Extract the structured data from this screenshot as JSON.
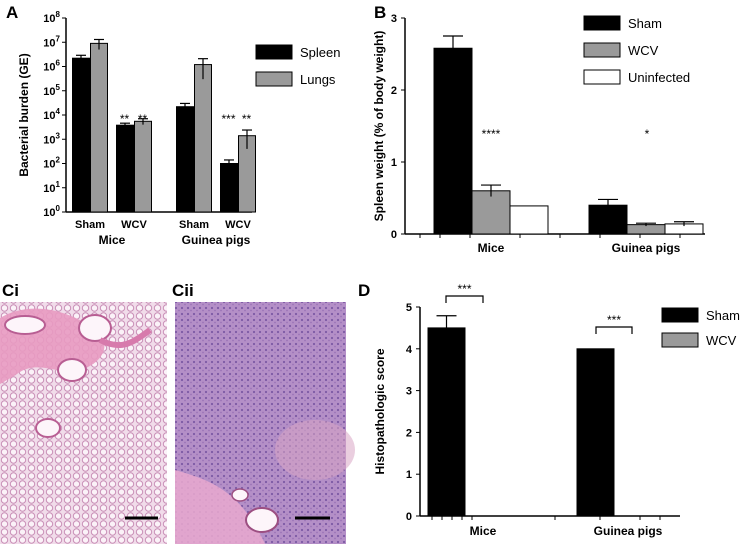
{
  "panels": {
    "A": "A",
    "B": "B",
    "Ci": "Ci",
    "Cii": "Cii",
    "D": "D"
  },
  "colors": {
    "sham": "#000000",
    "wcv": "#9a9a9a",
    "uninfected": "#ffffff"
  },
  "images": {
    "ci": {
      "description_color": "#e9c4dc"
    },
    "cii": {
      "description_color": "#b58ec6"
    }
  },
  "chart_data": [
    {
      "id": "A",
      "type": "bar",
      "scale": "log",
      "ylabel": "Bacterial burden (GE)",
      "ylim": [
        1,
        100000000
      ],
      "yticks": [
        "10^0",
        "10^1",
        "10^2",
        "10^3",
        "10^4",
        "10^5",
        "10^6",
        "10^7",
        "10^8"
      ],
      "categories": [
        "Sham",
        "WCV",
        "Sham",
        "WCV"
      ],
      "groups": [
        "Mice",
        "Guinea pigs"
      ],
      "series": [
        {
          "name": "Spleen",
          "values": [
            2200000,
            3800,
            22000,
            100
          ],
          "err": [
            700000,
            800,
            8000,
            40
          ]
        },
        {
          "name": "Lungs",
          "values": [
            9000000,
            5500,
            1200000,
            1400
          ],
          "err": [
            4000000,
            1500,
            900000,
            1000
          ]
        }
      ],
      "annotations": [
        "**",
        "**",
        "***",
        "**"
      ]
    },
    {
      "id": "B",
      "type": "bar",
      "ylabel": "Spleen weight (% of body weight)",
      "ylim": [
        0,
        3
      ],
      "yticks": [
        "0",
        "1",
        "2",
        "3"
      ],
      "categories": [
        "Mice",
        "Guinea pigs"
      ],
      "series": [
        {
          "name": "Sham",
          "values": [
            2.58,
            0.4
          ],
          "err": [
            0.17,
            0.08
          ]
        },
        {
          "name": "WCV",
          "values": [
            0.6,
            0.13
          ],
          "err": [
            0.08,
            0.02
          ]
        },
        {
          "name": "Uninfected",
          "values": [
            0.39,
            0.14
          ],
          "err": [
            0,
            0.03
          ]
        }
      ],
      "annotations": [
        "****",
        "*"
      ]
    },
    {
      "id": "D",
      "type": "bar",
      "ylabel": "Histopathologic score",
      "ylim": [
        0,
        5
      ],
      "yticks": [
        "0",
        "1",
        "2",
        "3",
        "4",
        "5"
      ],
      "categories": [
        "Mice",
        "Guinea pigs"
      ],
      "series": [
        {
          "name": "Sham",
          "values": [
            4.5,
            4.0
          ],
          "err": [
            0.29,
            0
          ]
        },
        {
          "name": "WCV",
          "values": [
            0,
            0
          ],
          "err": [
            0,
            0
          ]
        }
      ],
      "annotations": [
        "***",
        "***"
      ]
    }
  ]
}
